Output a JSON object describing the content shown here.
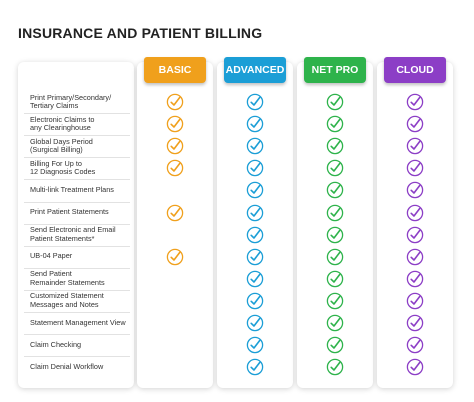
{
  "title": "INSURANCE AND PATIENT BILLING",
  "plans": [
    {
      "name": "BASIC",
      "color": "#f0a01c"
    },
    {
      "name": "ADVANCED",
      "color": "#1b9ed6"
    },
    {
      "name": "NET PRO",
      "color": "#2eb34b"
    },
    {
      "name": "CLOUD",
      "color": "#8c3ec6"
    }
  ],
  "rows": [
    {
      "label": "Print Primary/Secondary/\nTertiary Claims",
      "checks": [
        true,
        true,
        true,
        true
      ]
    },
    {
      "label": "Electronic Claims to\nany Clearinghouse",
      "checks": [
        true,
        true,
        true,
        true
      ]
    },
    {
      "label": "Global Days Period\n(Surgical Billing)",
      "checks": [
        true,
        true,
        true,
        true
      ]
    },
    {
      "label": "Billing For Up to\n12 Diagnosis Codes",
      "checks": [
        true,
        true,
        true,
        true
      ]
    },
    {
      "label": "Multi-link Treatment Plans",
      "checks": [
        false,
        true,
        true,
        true
      ]
    },
    {
      "label": "Print Patient Statements",
      "checks": [
        true,
        true,
        true,
        true
      ]
    },
    {
      "label": "Send Electronic and Email\nPatient Statements*",
      "checks": [
        false,
        true,
        true,
        true
      ]
    },
    {
      "label": "UB-04 Paper",
      "checks": [
        true,
        true,
        true,
        true
      ]
    },
    {
      "label": "Send Patient\nRemainder Statements",
      "checks": [
        false,
        true,
        true,
        true
      ]
    },
    {
      "label": "Customized Statement\nMessages and Notes",
      "checks": [
        false,
        true,
        true,
        true
      ]
    },
    {
      "label": "Statement Management View",
      "checks": [
        false,
        true,
        true,
        true
      ]
    },
    {
      "label": "Claim Checking",
      "checks": [
        false,
        true,
        true,
        true
      ]
    },
    {
      "label": "Claim Denial Workflow",
      "checks": [
        false,
        true,
        true,
        true
      ]
    }
  ]
}
